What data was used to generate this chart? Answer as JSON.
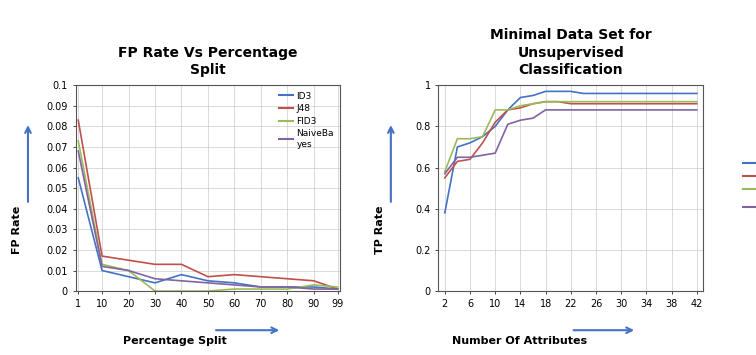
{
  "chart1": {
    "title": "FP Rate Vs Percentage\nSplit",
    "xlabel": "Percentage Split",
    "ylabel": "FP Rate",
    "x": [
      1,
      10,
      20,
      30,
      40,
      50,
      60,
      70,
      80,
      90,
      99
    ],
    "ID3": [
      0.055,
      0.01,
      0.007,
      0.004,
      0.008,
      0.005,
      0.004,
      0.002,
      0.002,
      0.002,
      0.001
    ],
    "J48": [
      0.083,
      0.017,
      0.015,
      0.013,
      0.013,
      0.007,
      0.008,
      0.007,
      0.006,
      0.005,
      0.001
    ],
    "FID3": [
      0.073,
      0.013,
      0.01,
      0.0,
      0.0,
      0.0,
      0.001,
      0.001,
      0.001,
      0.003,
      0.002
    ],
    "NaiveBayes": [
      0.068,
      0.012,
      0.01,
      0.006,
      0.005,
      0.004,
      0.003,
      0.002,
      0.002,
      0.001,
      0.001
    ],
    "colors": {
      "ID3": "#4472C4",
      "J48": "#C0504D",
      "FID3": "#9BBB59",
      "NaiveBayes": "#8064A2"
    },
    "ylim": [
      0,
      0.1
    ],
    "yticks": [
      0,
      0.01,
      0.02,
      0.03,
      0.04,
      0.05,
      0.06,
      0.07,
      0.08,
      0.09,
      0.1
    ],
    "ytick_labels": [
      "0",
      "0.01",
      "0.02",
      "0.03",
      "0.04",
      "0.05",
      "0.06",
      "0.07",
      "0.08",
      "0.09",
      "0.1"
    ],
    "xtick_positions": [
      1,
      10,
      20,
      30,
      40,
      50,
      60,
      70,
      80,
      90,
      99
    ],
    "xtick_labels": [
      "1",
      "10",
      "20",
      "30",
      "40",
      "50",
      "60",
      "70",
      "80",
      "90",
      "99"
    ]
  },
  "chart2": {
    "title": "Minimal Data Set for\nUnsupervised\nClassification",
    "xlabel": "Number Of Attributes",
    "ylabel": "TP Rate",
    "x": [
      2,
      4,
      6,
      8,
      10,
      12,
      14,
      16,
      18,
      20,
      22,
      24,
      26,
      28,
      30,
      32,
      34,
      36,
      38,
      40,
      42
    ],
    "ID3": [
      0.38,
      0.7,
      0.72,
      0.75,
      0.8,
      0.88,
      0.94,
      0.95,
      0.97,
      0.97,
      0.97,
      0.96,
      0.96,
      0.96,
      0.96,
      0.96,
      0.96,
      0.96,
      0.96,
      0.96,
      0.96
    ],
    "J48": [
      0.55,
      0.63,
      0.64,
      0.72,
      0.82,
      0.88,
      0.89,
      0.91,
      0.92,
      0.92,
      0.91,
      0.91,
      0.91,
      0.91,
      0.91,
      0.91,
      0.91,
      0.91,
      0.91,
      0.91,
      0.91
    ],
    "FID3": [
      0.58,
      0.74,
      0.74,
      0.75,
      0.88,
      0.88,
      0.9,
      0.91,
      0.92,
      0.92,
      0.92,
      0.92,
      0.92,
      0.92,
      0.92,
      0.92,
      0.92,
      0.92,
      0.92,
      0.92,
      0.92
    ],
    "NaiveBayes": [
      0.57,
      0.65,
      0.65,
      0.66,
      0.67,
      0.81,
      0.83,
      0.84,
      0.88,
      0.88,
      0.88,
      0.88,
      0.88,
      0.88,
      0.88,
      0.88,
      0.88,
      0.88,
      0.88,
      0.88,
      0.88
    ],
    "colors": {
      "ID3": "#4472C4",
      "J48": "#C0504D",
      "FID3": "#9BBB59",
      "NaiveBayes": "#8064A2"
    },
    "ylim": [
      0,
      1.0
    ],
    "yticks": [
      0,
      0.2,
      0.4,
      0.6,
      0.8,
      1.0
    ],
    "ytick_labels": [
      "0",
      "0.2",
      "0.4",
      "0.6",
      "0.8",
      "1"
    ],
    "xtick_positions": [
      2,
      6,
      10,
      14,
      18,
      22,
      26,
      30,
      34,
      38,
      42
    ],
    "xtick_labels": [
      "2",
      "6",
      "10",
      "14",
      "18",
      "22",
      "26",
      "30",
      "34",
      "38",
      "42"
    ]
  },
  "bg_color": "#FFFFFF",
  "arrow_color": "#4472C4",
  "border_color": "#AAAAAA"
}
